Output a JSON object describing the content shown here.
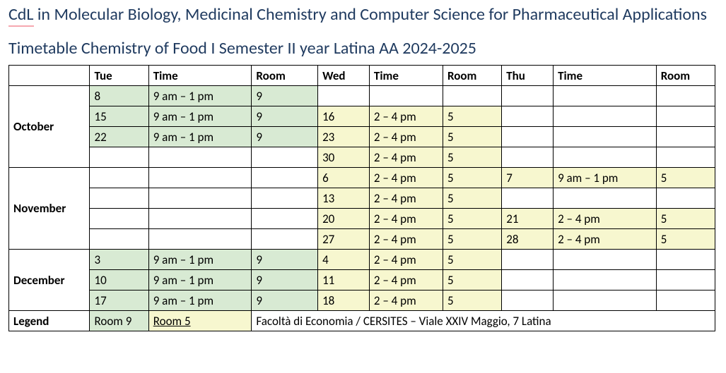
{
  "title_prefix": "CdL",
  "title_rest": " in Molecular Biology, Medicinal Chemistry and Computer Science for Pharmaceutical Applications",
  "subtitle": "Timetable Chemistry of Food I Semester II year Latina AA 2024-2025",
  "colors": {
    "title_text": "#1f3a5f",
    "underline": "#f6a8b0",
    "tuesday_fill": "#d8ead3",
    "wed_thu_fill": "#f7f7cf",
    "border": "#000000",
    "background": "#ffffff"
  },
  "headers": {
    "month": "",
    "tue": "Tue",
    "tue_time": "Time",
    "tue_room": "Room",
    "wed": "Wed",
    "wed_time": "Time",
    "wed_room": "Room",
    "thu": "Thu",
    "thu_time": "Time",
    "thu_room": "Room"
  },
  "months": {
    "october": "October",
    "november": "November",
    "december": "December",
    "legend": "Legend"
  },
  "rows": [
    {
      "tue": "8",
      "tue_time": "9 am – 1 pm",
      "tue_room": "9",
      "wed": "",
      "wed_time": "",
      "wed_room": "",
      "thu": "",
      "thu_time": "",
      "thu_room": ""
    },
    {
      "tue": "15",
      "tue_time": "9 am – 1 pm",
      "tue_room": "9",
      "wed": "16",
      "wed_time": "2 – 4 pm",
      "wed_room": "5",
      "thu": "",
      "thu_time": "",
      "thu_room": ""
    },
    {
      "tue": "22",
      "tue_time": "9 am – 1 pm",
      "tue_room": "9",
      "wed": "23",
      "wed_time": "2 – 4 pm",
      "wed_room": "5",
      "thu": "",
      "thu_time": "",
      "thu_room": ""
    },
    {
      "tue": "",
      "tue_time": "",
      "tue_room": "",
      "wed": "30",
      "wed_time": "2 – 4 pm",
      "wed_room": "5",
      "thu": "",
      "thu_time": "",
      "thu_room": ""
    },
    {
      "tue": "",
      "tue_time": "",
      "tue_room": "",
      "wed": "6",
      "wed_time": "2 – 4 pm",
      "wed_room": "5",
      "thu": "7",
      "thu_time": "9 am – 1 pm",
      "thu_room": "5"
    },
    {
      "tue": "",
      "tue_time": "",
      "tue_room": "",
      "wed": "13",
      "wed_time": "2 – 4 pm",
      "wed_room": "5",
      "thu": "",
      "thu_time": "",
      "thu_room": ""
    },
    {
      "tue": "",
      "tue_time": "",
      "tue_room": "",
      "wed": "20",
      "wed_time": "2 – 4 pm",
      "wed_room": "5",
      "thu": "21",
      "thu_time": "2 – 4 pm",
      "thu_room": "5"
    },
    {
      "tue": "",
      "tue_time": "",
      "tue_room": "",
      "wed": "27",
      "wed_time": "2 – 4 pm",
      "wed_room": "5",
      "thu": "28",
      "thu_time": "2 – 4 pm",
      "thu_room": "5"
    },
    {
      "tue": "3",
      "tue_time": "9 am – 1 pm",
      "tue_room": "9",
      "wed": "4",
      "wed_time": "2 – 4 pm",
      "wed_room": "5",
      "thu": "",
      "thu_time": "",
      "thu_room": ""
    },
    {
      "tue": "10",
      "tue_time": "9 am – 1 pm",
      "tue_room": "9",
      "wed": "11",
      "wed_time": "2 – 4 pm",
      "wed_room": "5",
      "thu": "",
      "thu_time": "",
      "thu_room": ""
    },
    {
      "tue": "17",
      "tue_time": "9 am – 1 pm",
      "tue_room": "9",
      "wed": "18",
      "wed_time": "2 – 4 pm",
      "wed_room": "5",
      "thu": "",
      "thu_time": "",
      "thu_room": ""
    }
  ],
  "legend": {
    "room9": "Room 9",
    "room5": "Room 5",
    "address": "Facoltà di Economia / CERSITES – Viale XXIV Maggio, 7 Latina"
  }
}
